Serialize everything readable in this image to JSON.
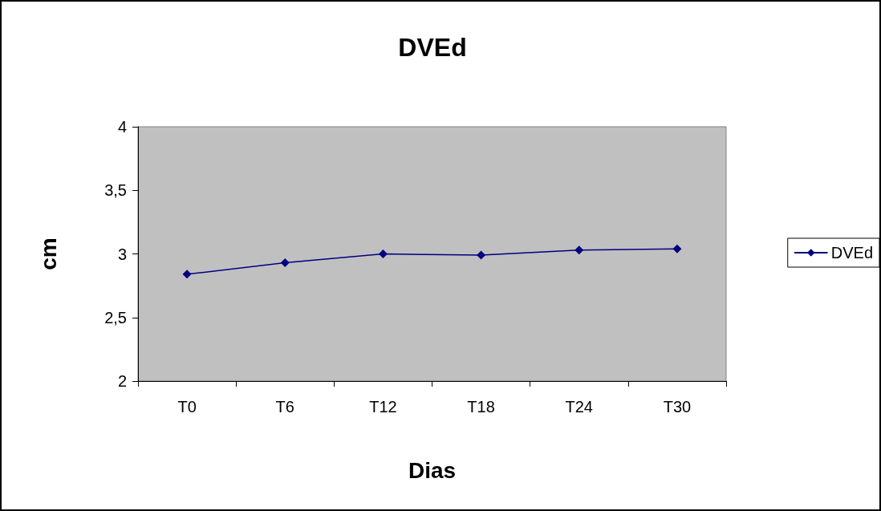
{
  "chart_data": {
    "type": "line",
    "title": "DVEd",
    "xlabel": "Dias",
    "ylabel": "cm",
    "categories": [
      "T0",
      "T6",
      "T12",
      "T18",
      "T24",
      "T30"
    ],
    "series": [
      {
        "name": "DVEd",
        "color": "#000080",
        "values": [
          2.84,
          2.93,
          3.0,
          2.99,
          3.03,
          3.04
        ]
      }
    ],
    "ylim": [
      2,
      4
    ],
    "yticks": [
      2,
      {
        "value": 2.5,
        "label": "2,5"
      },
      3,
      {
        "value": 3.5,
        "label": "3,5"
      },
      4
    ],
    "grid": false,
    "legend": "right",
    "marker": "diamond",
    "line_style": "solid"
  }
}
